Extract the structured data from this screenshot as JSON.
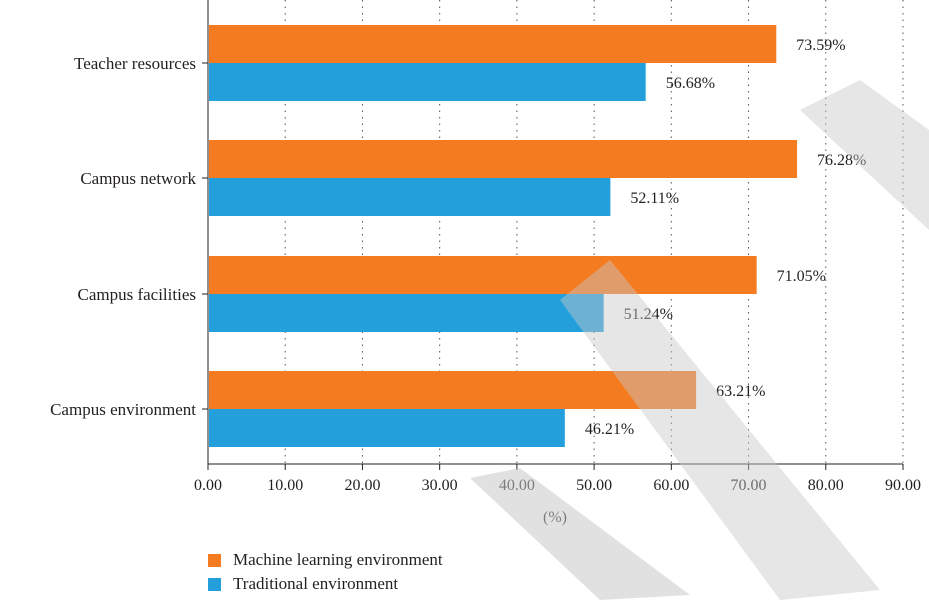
{
  "chart_data": {
    "type": "bar",
    "orientation": "horizontal",
    "categories": [
      "Teacher resources",
      "Campus network",
      "Campus facilities",
      "Campus environment"
    ],
    "series": [
      {
        "name": "Machine learning environment",
        "color": "#f47b20",
        "values": [
          73.59,
          76.28,
          71.05,
          63.21
        ]
      },
      {
        "name": "Traditional environment",
        "color": "#23a0dc",
        "values": [
          56.68,
          52.11,
          51.24,
          46.21
        ]
      }
    ],
    "data_labels": [
      [
        "73.59%",
        "76.28%",
        "71.05%",
        "63.21%"
      ],
      [
        "56.68%",
        "52.11%",
        "51.24%",
        "46.21%"
      ]
    ],
    "xlim": [
      0,
      90
    ],
    "xticks": [
      "0.00",
      "10.00",
      "20.00",
      "30.00",
      "40.00",
      "50.00",
      "60.00",
      "70.00",
      "80.00",
      "90.00"
    ],
    "xlabel": "(%)",
    "ylabel": "",
    "title": "",
    "grid": "vertical dotted",
    "legend_position": "bottom-left"
  }
}
